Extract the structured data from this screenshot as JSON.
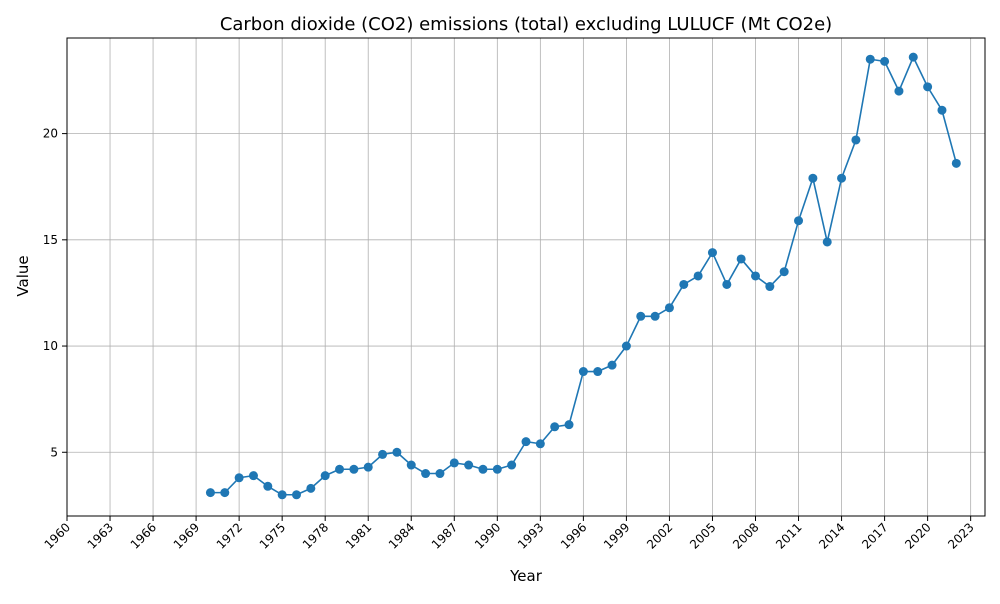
{
  "chart_data": {
    "type": "line",
    "title": "Carbon dioxide (CO2) emissions (total) excluding LULUCF (Mt CO2e)",
    "xlabel": "Year",
    "ylabel": "Value",
    "xlim": [
      1960,
      2024
    ],
    "ylim": [
      2,
      24.5
    ],
    "grid": true,
    "legend": "none",
    "x_ticks": [
      1960,
      1963,
      1966,
      1969,
      1972,
      1975,
      1978,
      1981,
      1984,
      1987,
      1990,
      1993,
      1996,
      1999,
      2002,
      2005,
      2008,
      2011,
      2014,
      2017,
      2020,
      2023
    ],
    "y_ticks": [
      5,
      10,
      15,
      20
    ],
    "series": [
      {
        "color": "#1f77b4",
        "marker": "circle",
        "x": [
          1970,
          1971,
          1972,
          1973,
          1974,
          1975,
          1976,
          1977,
          1978,
          1979,
          1980,
          1981,
          1982,
          1983,
          1984,
          1985,
          1986,
          1987,
          1988,
          1989,
          1990,
          1991,
          1992,
          1993,
          1994,
          1995,
          1996,
          1997,
          1998,
          1999,
          2000,
          2001,
          2002,
          2003,
          2004,
          2005,
          2006,
          2007,
          2008,
          2009,
          2010,
          2011,
          2012,
          2013,
          2014,
          2015,
          2016,
          2017,
          2018,
          2019,
          2020,
          2021,
          2022
        ],
        "y": [
          3.1,
          3.1,
          3.8,
          3.9,
          3.4,
          3.0,
          3.0,
          3.3,
          3.9,
          4.2,
          4.2,
          4.3,
          4.9,
          5.0,
          4.4,
          4.0,
          4.0,
          4.5,
          4.4,
          4.2,
          4.2,
          4.4,
          5.5,
          5.4,
          6.2,
          6.3,
          8.8,
          8.8,
          9.1,
          10.0,
          11.4,
          11.4,
          11.8,
          12.9,
          13.3,
          14.4,
          12.9,
          14.1,
          13.3,
          12.8,
          13.5,
          15.9,
          17.9,
          14.9,
          17.9,
          19.7,
          23.5,
          23.4,
          22.0,
          23.6,
          22.2,
          21.1,
          18.6
        ]
      }
    ]
  }
}
